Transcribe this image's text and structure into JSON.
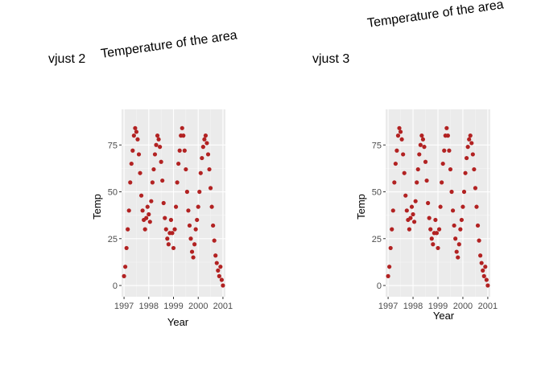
{
  "chart_data": [
    {
      "type": "scatter",
      "tag": "vjust 2",
      "title": "Temperature of the area",
      "xlabel": "Year",
      "ylabel": "Temp",
      "xlim": [
        1996.9,
        2001.1
      ],
      "ylim": [
        -6,
        94
      ],
      "x_ticks": [
        1997,
        1998,
        1999,
        2000,
        2001
      ],
      "y_ticks": [
        0,
        25,
        50,
        75
      ],
      "x_tick_labels": [
        "1997",
        "1998",
        "1999",
        "2000",
        "2001"
      ],
      "y_tick_labels": [
        "0",
        "25",
        "50",
        "75"
      ],
      "grid": true,
      "point_color": "#B22222",
      "series": [
        {
          "values_description": "daily temperature readings 1997–2001, seasonal cycle",
          "x": [
            1997.0,
            1997.05,
            1997.1,
            1997.15,
            1997.2,
            1997.25,
            1997.3,
            1997.35,
            1997.4,
            1997.45,
            1997.5,
            1997.55,
            1997.6,
            1997.65,
            1997.7,
            1997.75,
            1997.8,
            1997.85,
            1997.9,
            1997.95,
            1998.0,
            1998.05,
            1998.1,
            1998.15,
            1998.2,
            1998.25,
            1998.3,
            1998.35,
            1998.4,
            1998.45,
            1998.5,
            1998.55,
            1998.6,
            1998.65,
            1998.7,
            1998.75,
            1998.8,
            1998.85,
            1998.9,
            1998.95,
            1999.0,
            1999.05,
            1999.1,
            1999.15,
            1999.2,
            1999.25,
            1999.3,
            1999.35,
            1999.4,
            1999.45,
            1999.5,
            1999.55,
            1999.6,
            1999.65,
            1999.7,
            1999.75,
            1999.8,
            1999.85,
            1999.9,
            1999.95,
            2000.0,
            2000.05,
            2000.1,
            2000.15,
            2000.2,
            2000.25,
            2000.3,
            2000.35,
            2000.4,
            2000.45,
            2000.5,
            2000.55,
            2000.6,
            2000.65,
            2000.7,
            2000.75,
            2000.8,
            2000.85,
            2000.9,
            2000.95,
            2001.0
          ],
          "y": [
            5,
            10,
            20,
            30,
            40,
            55,
            65,
            72,
            80,
            84,
            82,
            78,
            70,
            60,
            48,
            40,
            35,
            30,
            36,
            42,
            38,
            34,
            45,
            55,
            62,
            70,
            75,
            80,
            78,
            74,
            66,
            56,
            44,
            36,
            30,
            25,
            22,
            28,
            35,
            28,
            20,
            30,
            42,
            55,
            65,
            72,
            80,
            84,
            80,
            72,
            62,
            50,
            40,
            32,
            25,
            18,
            15,
            22,
            30,
            35,
            42,
            50,
            60,
            68,
            74,
            78,
            80,
            76,
            70,
            62,
            52,
            42,
            32,
            24,
            16,
            12,
            8,
            5,
            10,
            3,
            0
          ]
        }
      ]
    },
    {
      "type": "scatter",
      "tag": "vjust 3",
      "title": "Temperature of the area",
      "xlabel": "Year",
      "ylabel": "Temp",
      "xlim": [
        1996.9,
        2001.1
      ],
      "ylim": [
        -6,
        94
      ],
      "x_ticks": [
        1997,
        1998,
        1999,
        2000,
        2001
      ],
      "y_ticks": [
        0,
        25,
        50,
        75
      ],
      "x_tick_labels": [
        "1997",
        "1998",
        "1999",
        "2000",
        "2001"
      ],
      "y_tick_labels": [
        "0",
        "25",
        "50",
        "75"
      ],
      "grid": true,
      "point_color": "#B22222",
      "series": [
        {
          "values_description": "daily temperature readings 1997–2001, seasonal cycle",
          "x": [
            1997.0,
            1997.05,
            1997.1,
            1997.15,
            1997.2,
            1997.25,
            1997.3,
            1997.35,
            1997.4,
            1997.45,
            1997.5,
            1997.55,
            1997.6,
            1997.65,
            1997.7,
            1997.75,
            1997.8,
            1997.85,
            1997.9,
            1997.95,
            1998.0,
            1998.05,
            1998.1,
            1998.15,
            1998.2,
            1998.25,
            1998.3,
            1998.35,
            1998.4,
            1998.45,
            1998.5,
            1998.55,
            1998.6,
            1998.65,
            1998.7,
            1998.75,
            1998.8,
            1998.85,
            1998.9,
            1998.95,
            1999.0,
            1999.05,
            1999.1,
            1999.15,
            1999.2,
            1999.25,
            1999.3,
            1999.35,
            1999.4,
            1999.45,
            1999.5,
            1999.55,
            1999.6,
            1999.65,
            1999.7,
            1999.75,
            1999.8,
            1999.85,
            1999.9,
            1999.95,
            2000.0,
            2000.05,
            2000.1,
            2000.15,
            2000.2,
            2000.25,
            2000.3,
            2000.35,
            2000.4,
            2000.45,
            2000.5,
            2000.55,
            2000.6,
            2000.65,
            2000.7,
            2000.75,
            2000.8,
            2000.85,
            2000.9,
            2000.95,
            2001.0
          ],
          "y": [
            5,
            10,
            20,
            30,
            40,
            55,
            65,
            72,
            80,
            84,
            82,
            78,
            70,
            60,
            48,
            40,
            35,
            30,
            36,
            42,
            38,
            34,
            45,
            55,
            62,
            70,
            75,
            80,
            78,
            74,
            66,
            56,
            44,
            36,
            30,
            25,
            22,
            28,
            35,
            28,
            20,
            30,
            42,
            55,
            65,
            72,
            80,
            84,
            80,
            72,
            62,
            50,
            40,
            32,
            25,
            18,
            15,
            22,
            30,
            35,
            42,
            50,
            60,
            68,
            74,
            78,
            80,
            76,
            70,
            62,
            52,
            42,
            32,
            24,
            16,
            12,
            8,
            5,
            10,
            3,
            0
          ]
        }
      ]
    }
  ]
}
